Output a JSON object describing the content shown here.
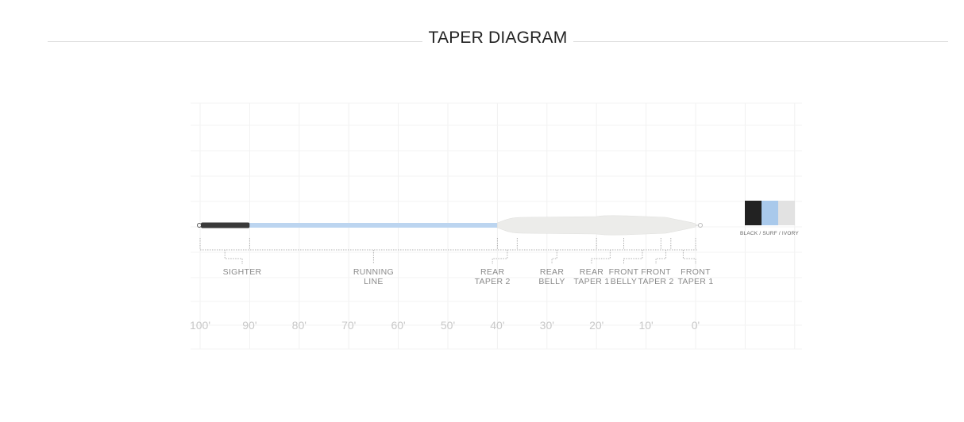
{
  "header": {
    "title": "TAPER DIAGRAM"
  },
  "line_sections": [
    {
      "lines": [
        "SIGHTER"
      ],
      "label_center_ft": 91.5
    },
    {
      "lines": [
        "RUNNING",
        "LINE"
      ],
      "label_center_ft": 65
    },
    {
      "lines": [
        "REAR",
        "TAPER 2"
      ],
      "label_center_ft": 41
    },
    {
      "lines": [
        "REAR",
        "BELLY"
      ],
      "label_center_ft": 29
    },
    {
      "lines": [
        "REAR",
        "TAPER 1"
      ],
      "label_center_ft": 21
    },
    {
      "lines": [
        "FRONT",
        "BELLY"
      ],
      "label_center_ft": 14.5
    },
    {
      "lines": [
        "FRONT",
        "TAPER 2"
      ],
      "label_center_ft": 8
    },
    {
      "lines": [
        "FRONT",
        "TAPER 1"
      ],
      "label_center_ft": 0
    }
  ],
  "section_boundaries_ft": [
    100,
    90,
    40,
    36,
    20,
    14.5,
    7,
    5,
    0
  ],
  "axis": {
    "tick_labels": [
      "100'",
      "90'",
      "80'",
      "70'",
      "60'",
      "50'",
      "40'",
      "30'",
      "20'",
      "10'",
      "0'"
    ],
    "tick_values_ft": [
      100,
      90,
      80,
      70,
      60,
      50,
      40,
      30,
      20,
      10,
      0
    ]
  },
  "colors": {
    "caption": "BLACK / SURF / IVORY",
    "swatches": [
      {
        "name": "black",
        "hex": "#222222"
      },
      {
        "name": "surf",
        "hex": "#a9c9eb"
      },
      {
        "name": "ivory",
        "hex": "#e2e2e2"
      }
    ],
    "sighter": "#3a3a3a",
    "running_line": "#bcd5f0",
    "head": "#ececea"
  }
}
